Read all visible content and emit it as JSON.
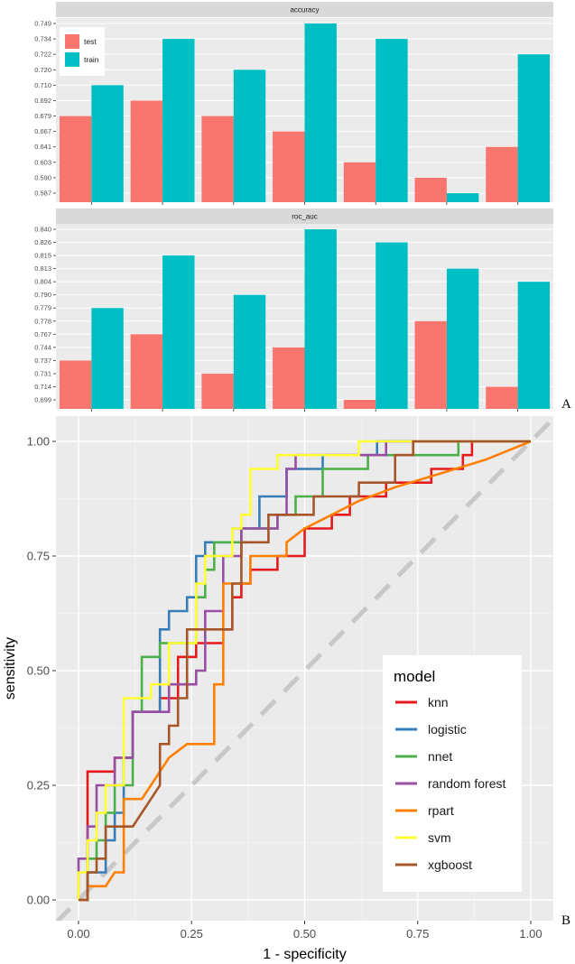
{
  "chart_data": [
    {
      "type": "bar",
      "title": "accuracy",
      "panel_label": "A",
      "series": [
        {
          "name": "test",
          "color": "#F8766D",
          "values": [
            0.679,
            0.692,
            0.679,
            0.667,
            0.603,
            0.59,
            0.641
          ]
        },
        {
          "name": "train",
          "color": "#00BFC4",
          "values": [
            0.71,
            0.734,
            0.72,
            0.749,
            0.734,
            0.587,
            0.722
          ]
        }
      ],
      "categories_count": 7,
      "y_ticks": [
        0.749,
        0.734,
        0.722,
        0.72,
        0.71,
        0.692,
        0.679,
        0.667,
        0.641,
        0.603,
        0.59,
        0.587
      ],
      "legend_position": "top-left"
    },
    {
      "type": "bar",
      "title": "roc_auc",
      "series": [
        {
          "name": "test",
          "color": "#F8766D",
          "values": [
            0.737,
            0.767,
            0.731,
            0.744,
            0.699,
            0.778,
            0.714
          ]
        },
        {
          "name": "train",
          "color": "#00BFC4",
          "values": [
            0.779,
            0.815,
            0.79,
            0.84,
            0.826,
            0.813,
            0.804
          ]
        }
      ],
      "categories_count": 7,
      "y_ticks": [
        0.84,
        0.826,
        0.815,
        0.813,
        0.804,
        0.79,
        0.779,
        0.778,
        0.767,
        0.744,
        0.737,
        0.731,
        0.714,
        0.699
      ]
    },
    {
      "type": "line",
      "panel_label": "B",
      "xlabel": "1 - specificity",
      "ylabel": "sensitivity",
      "xlim": [
        0,
        1
      ],
      "ylim": [
        0,
        1
      ],
      "x_ticks": [
        "0.00",
        "0.25",
        "0.50",
        "0.75",
        "1.00"
      ],
      "y_ticks": [
        "0.00",
        "0.25",
        "0.50",
        "0.75",
        "1.00"
      ],
      "legend_title": "model",
      "legend_position": "bottom-right",
      "diagonal": true,
      "series": [
        {
          "name": "knn",
          "color": "#E41A1C",
          "points": [
            [
              0,
              0
            ],
            [
              0.02,
              0
            ],
            [
              0.02,
              0.28
            ],
            [
              0.08,
              0.28
            ],
            [
              0.08,
              0.31
            ],
            [
              0.12,
              0.31
            ],
            [
              0.12,
              0.41
            ],
            [
              0.18,
              0.41
            ],
            [
              0.18,
              0.44
            ],
            [
              0.22,
              0.44
            ],
            [
              0.22,
              0.53
            ],
            [
              0.26,
              0.53
            ],
            [
              0.26,
              0.56
            ],
            [
              0.32,
              0.56
            ],
            [
              0.32,
              0.59
            ],
            [
              0.34,
              0.59
            ],
            [
              0.34,
              0.66
            ],
            [
              0.36,
              0.66
            ],
            [
              0.36,
              0.69
            ],
            [
              0.38,
              0.69
            ],
            [
              0.38,
              0.72
            ],
            [
              0.44,
              0.72
            ],
            [
              0.44,
              0.75
            ],
            [
              0.5,
              0.75
            ],
            [
              0.5,
              0.81
            ],
            [
              0.56,
              0.81
            ],
            [
              0.56,
              0.84
            ],
            [
              0.6,
              0.84
            ],
            [
              0.6,
              0.88
            ],
            [
              0.68,
              0.88
            ],
            [
              0.68,
              0.91
            ],
            [
              0.78,
              0.91
            ],
            [
              0.78,
              0.94
            ],
            [
              0.85,
              0.94
            ],
            [
              0.85,
              0.97
            ],
            [
              0.87,
              0.97
            ],
            [
              0.87,
              1.0
            ],
            [
              1.0,
              1.0
            ]
          ]
        },
        {
          "name": "logistic",
          "color": "#377EB8",
          "points": [
            [
              0,
              0
            ],
            [
              0.02,
              0
            ],
            [
              0.02,
              0.06
            ],
            [
              0.06,
              0.06
            ],
            [
              0.06,
              0.13
            ],
            [
              0.08,
              0.13
            ],
            [
              0.08,
              0.19
            ],
            [
              0.1,
              0.19
            ],
            [
              0.1,
              0.31
            ],
            [
              0.12,
              0.31
            ],
            [
              0.12,
              0.41
            ],
            [
              0.18,
              0.41
            ],
            [
              0.18,
              0.59
            ],
            [
              0.2,
              0.59
            ],
            [
              0.2,
              0.63
            ],
            [
              0.24,
              0.63
            ],
            [
              0.24,
              0.66
            ],
            [
              0.26,
              0.66
            ],
            [
              0.26,
              0.75
            ],
            [
              0.28,
              0.75
            ],
            [
              0.28,
              0.78
            ],
            [
              0.34,
              0.78
            ],
            [
              0.34,
              0.81
            ],
            [
              0.4,
              0.81
            ],
            [
              0.4,
              0.88
            ],
            [
              0.46,
              0.88
            ],
            [
              0.46,
              0.94
            ],
            [
              0.54,
              0.94
            ],
            [
              0.54,
              0.97
            ],
            [
              0.66,
              0.97
            ],
            [
              0.66,
              1.0
            ],
            [
              1.0,
              1.0
            ]
          ]
        },
        {
          "name": "nnet",
          "color": "#4DAF4A",
          "points": [
            [
              0,
              0
            ],
            [
              0.02,
              0
            ],
            [
              0.02,
              0.09
            ],
            [
              0.04,
              0.09
            ],
            [
              0.04,
              0.13
            ],
            [
              0.06,
              0.13
            ],
            [
              0.06,
              0.19
            ],
            [
              0.08,
              0.19
            ],
            [
              0.08,
              0.25
            ],
            [
              0.12,
              0.25
            ],
            [
              0.12,
              0.41
            ],
            [
              0.14,
              0.41
            ],
            [
              0.14,
              0.53
            ],
            [
              0.18,
              0.53
            ],
            [
              0.18,
              0.56
            ],
            [
              0.26,
              0.56
            ],
            [
              0.26,
              0.66
            ],
            [
              0.28,
              0.66
            ],
            [
              0.28,
              0.72
            ],
            [
              0.3,
              0.72
            ],
            [
              0.3,
              0.78
            ],
            [
              0.36,
              0.78
            ],
            [
              0.36,
              0.81
            ],
            [
              0.44,
              0.81
            ],
            [
              0.44,
              0.84
            ],
            [
              0.48,
              0.84
            ],
            [
              0.48,
              0.88
            ],
            [
              0.54,
              0.88
            ],
            [
              0.54,
              0.94
            ],
            [
              0.64,
              0.94
            ],
            [
              0.64,
              0.97
            ],
            [
              0.84,
              0.97
            ],
            [
              0.84,
              1.0
            ],
            [
              1.0,
              1.0
            ]
          ]
        },
        {
          "name": "random forest",
          "color": "#984EA3",
          "points": [
            [
              0,
              0
            ],
            [
              0,
              0.09
            ],
            [
              0.02,
              0.09
            ],
            [
              0.02,
              0.16
            ],
            [
              0.04,
              0.16
            ],
            [
              0.04,
              0.25
            ],
            [
              0.08,
              0.25
            ],
            [
              0.08,
              0.31
            ],
            [
              0.12,
              0.31
            ],
            [
              0.12,
              0.41
            ],
            [
              0.2,
              0.41
            ],
            [
              0.2,
              0.47
            ],
            [
              0.26,
              0.47
            ],
            [
              0.26,
              0.5
            ],
            [
              0.28,
              0.5
            ],
            [
              0.28,
              0.63
            ],
            [
              0.32,
              0.63
            ],
            [
              0.32,
              0.75
            ],
            [
              0.36,
              0.75
            ],
            [
              0.36,
              0.81
            ],
            [
              0.44,
              0.81
            ],
            [
              0.44,
              0.84
            ],
            [
              0.46,
              0.84
            ],
            [
              0.46,
              0.94
            ],
            [
              0.48,
              0.94
            ],
            [
              0.48,
              0.97
            ],
            [
              0.68,
              0.97
            ],
            [
              0.68,
              1.0
            ],
            [
              1.0,
              1.0
            ]
          ]
        },
        {
          "name": "rpart",
          "color": "#FF7F00",
          "points": [
            [
              0,
              0
            ],
            [
              0.02,
              0
            ],
            [
              0.02,
              0.03
            ],
            [
              0.06,
              0.03
            ],
            [
              0.08,
              0.06
            ],
            [
              0.1,
              0.06
            ],
            [
              0.1,
              0.22
            ],
            [
              0.14,
              0.22
            ],
            [
              0.16,
              0.25
            ],
            [
              0.18,
              0.28
            ],
            [
              0.2,
              0.31
            ],
            [
              0.24,
              0.34
            ],
            [
              0.3,
              0.34
            ],
            [
              0.3,
              0.47
            ],
            [
              0.32,
              0.47
            ],
            [
              0.32,
              0.69
            ],
            [
              0.38,
              0.69
            ],
            [
              0.38,
              0.75
            ],
            [
              0.46,
              0.75
            ],
            [
              0.46,
              0.78
            ],
            [
              0.5,
              0.81
            ],
            [
              0.56,
              0.84
            ],
            [
              0.62,
              0.87
            ],
            [
              0.7,
              0.9
            ],
            [
              0.8,
              0.93
            ],
            [
              0.9,
              0.96
            ],
            [
              1.0,
              1.0
            ]
          ]
        },
        {
          "name": "svm",
          "color": "#FFFF33",
          "points": [
            [
              0,
              0
            ],
            [
              0,
              0.06
            ],
            [
              0.02,
              0.06
            ],
            [
              0.02,
              0.13
            ],
            [
              0.04,
              0.13
            ],
            [
              0.04,
              0.19
            ],
            [
              0.06,
              0.19
            ],
            [
              0.06,
              0.25
            ],
            [
              0.1,
              0.25
            ],
            [
              0.1,
              0.44
            ],
            [
              0.16,
              0.44
            ],
            [
              0.16,
              0.47
            ],
            [
              0.2,
              0.47
            ],
            [
              0.2,
              0.56
            ],
            [
              0.26,
              0.56
            ],
            [
              0.26,
              0.69
            ],
            [
              0.28,
              0.69
            ],
            [
              0.28,
              0.75
            ],
            [
              0.34,
              0.75
            ],
            [
              0.34,
              0.81
            ],
            [
              0.36,
              0.81
            ],
            [
              0.36,
              0.84
            ],
            [
              0.38,
              0.84
            ],
            [
              0.38,
              0.94
            ],
            [
              0.44,
              0.94
            ],
            [
              0.44,
              0.97
            ],
            [
              0.62,
              0.97
            ],
            [
              0.62,
              1.0
            ],
            [
              0.8,
              1.0
            ],
            [
              1.0,
              1.0
            ]
          ]
        },
        {
          "name": "xgboost",
          "color": "#A65628",
          "points": [
            [
              0,
              0
            ],
            [
              0.02,
              0
            ],
            [
              0.02,
              0.06
            ],
            [
              0.04,
              0.06
            ],
            [
              0.04,
              0.09
            ],
            [
              0.06,
              0.09
            ],
            [
              0.06,
              0.16
            ],
            [
              0.1,
              0.16
            ],
            [
              0.12,
              0.16
            ],
            [
              0.14,
              0.19
            ],
            [
              0.16,
              0.22
            ],
            [
              0.18,
              0.25
            ],
            [
              0.18,
              0.34
            ],
            [
              0.2,
              0.34
            ],
            [
              0.2,
              0.38
            ],
            [
              0.22,
              0.38
            ],
            [
              0.22,
              0.44
            ],
            [
              0.24,
              0.44
            ],
            [
              0.24,
              0.59
            ],
            [
              0.3,
              0.59
            ],
            [
              0.34,
              0.59
            ],
            [
              0.34,
              0.69
            ],
            [
              0.36,
              0.69
            ],
            [
              0.36,
              0.78
            ],
            [
              0.42,
              0.78
            ],
            [
              0.42,
              0.84
            ],
            [
              0.52,
              0.84
            ],
            [
              0.52,
              0.88
            ],
            [
              0.62,
              0.88
            ],
            [
              0.62,
              0.91
            ],
            [
              0.7,
              0.91
            ],
            [
              0.7,
              0.97
            ],
            [
              0.74,
              0.97
            ],
            [
              0.74,
              1.0
            ],
            [
              1.0,
              1.0
            ]
          ]
        }
      ]
    }
  ]
}
